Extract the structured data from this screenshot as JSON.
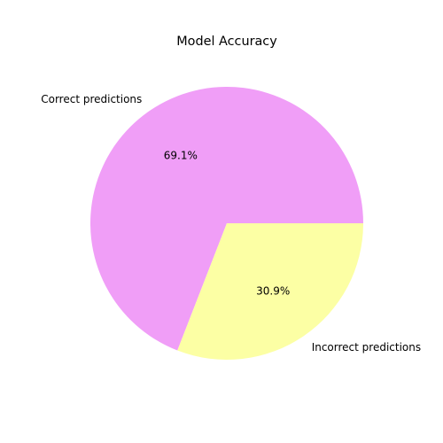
{
  "chart_data": {
    "type": "pie",
    "title": "Model Accuracy",
    "slices": [
      {
        "label": "Correct predictions",
        "value": 69.1,
        "pct_label": "69.1%",
        "color": "#f09ef7"
      },
      {
        "label": "Incorrect predictions",
        "value": 30.9,
        "pct_label": "30.9%",
        "color": "#fcffa4"
      }
    ],
    "start_angle_deg": 0,
    "direction": "counterclockwise",
    "legend": "none"
  }
}
